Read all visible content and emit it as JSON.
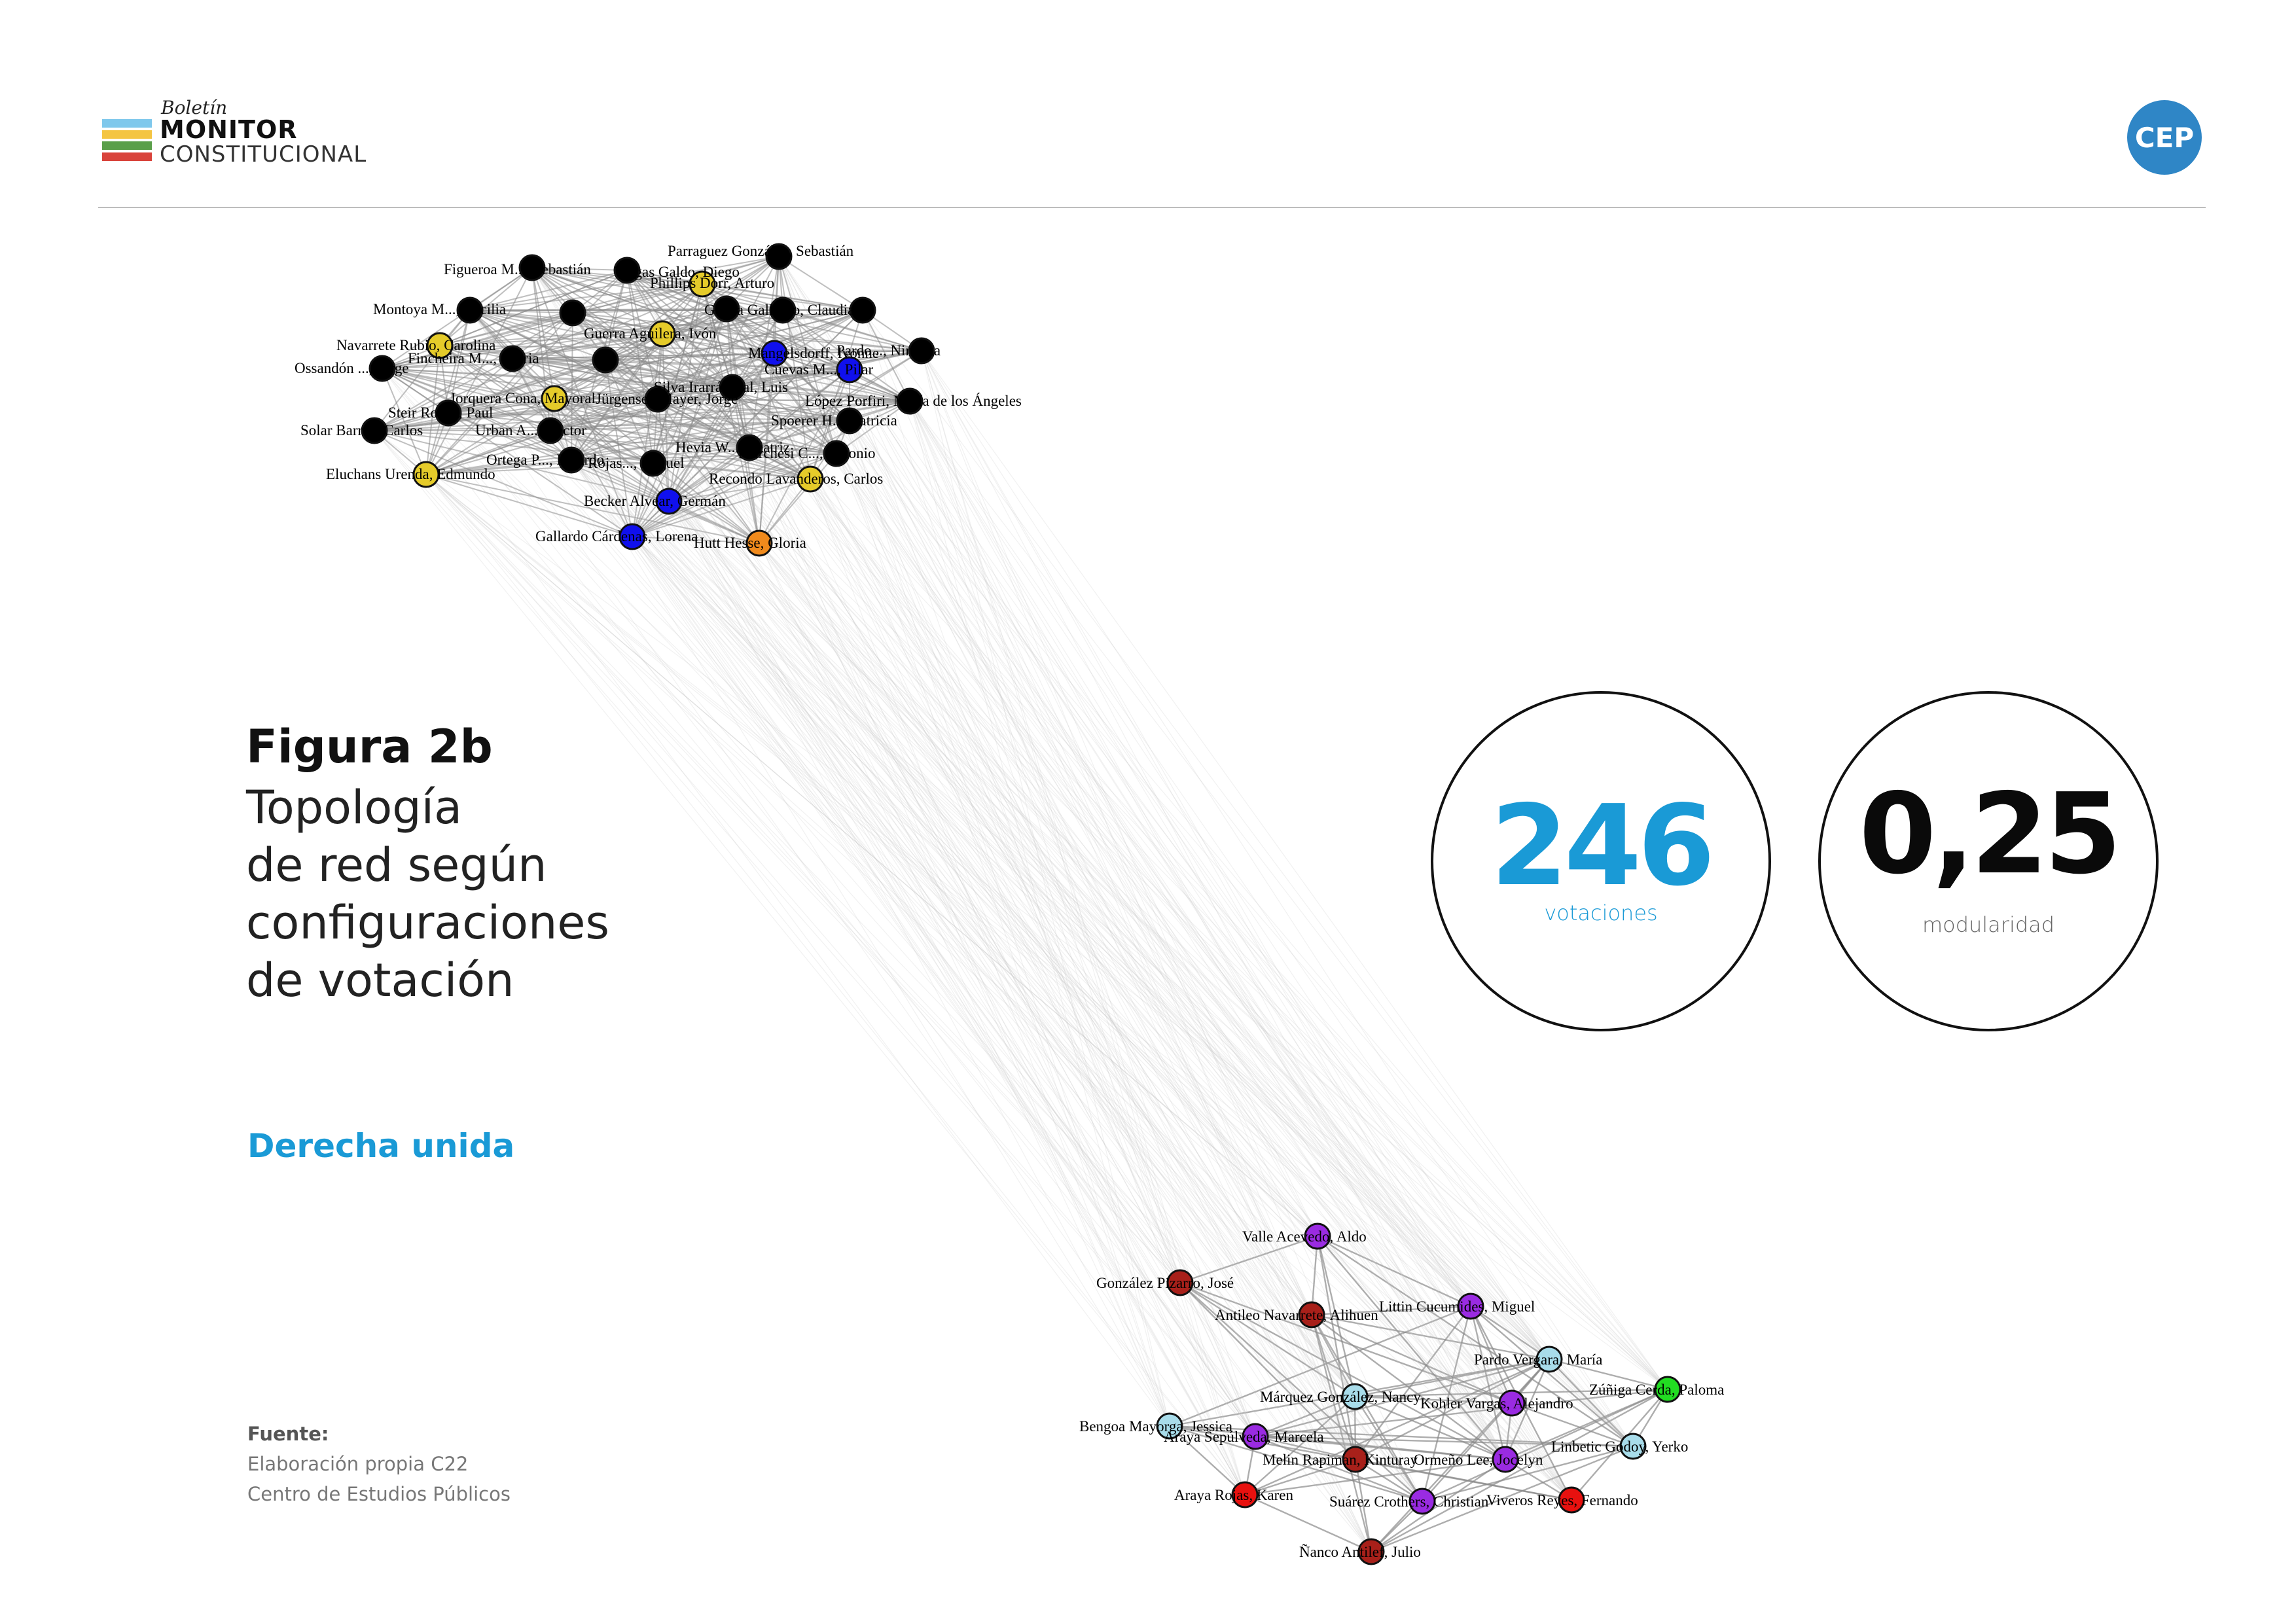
{
  "header": {
    "logo_top": "Boletín",
    "logo_mid": "MONITOR",
    "logo_bot": "CONSTITUCIONAL",
    "cep_badge": "CEP"
  },
  "figure": {
    "title": "Figura 2b",
    "subtitle_lines": [
      "Topología",
      "de red según",
      "configuraciones",
      "de votación"
    ],
    "highlight": "Derecha unida"
  },
  "stats": {
    "votes_value": "246",
    "votes_label": "votaciones",
    "modularity_value": "0,25",
    "modularity_label": "modularidad"
  },
  "source": {
    "label": "Fuente:",
    "line1": "Elaboración propia C22",
    "line2": "Centro de Estudios Públicos"
  },
  "colors": {
    "accent": "#1a9ad6",
    "node_black": "#000000",
    "node_yellow": "#e5cb2a",
    "node_blue": "#1010ee",
    "node_orange": "#f08a1c",
    "node_purple": "#9a2be2",
    "node_darkred": "#a8201a",
    "node_lightblue": "#a8dcea",
    "node_red": "#e8110f",
    "node_green": "#22dd22"
  },
  "network": {
    "cluster_top": [
      {
        "name": "Figueroa M..., Sebastián",
        "color": "black"
      },
      {
        "name": "Vargas Galdo, Diego",
        "color": "black"
      },
      {
        "name": "Parraguez González, Sebastián",
        "color": "black"
      },
      {
        "name": "Phillips Dorr, Arturo",
        "color": "yellow"
      },
      {
        "name": "Montoya M..., Cecilia",
        "color": "black"
      },
      {
        "name": "Gatica Gallardo, Claudia",
        "color": "black"
      },
      {
        "name": "Navarrete Rubio, Carolina",
        "color": "yellow"
      },
      {
        "name": "Ossandón ..., Jorge",
        "color": "black"
      },
      {
        "name": "Fincheira M..., Gloria",
        "color": "black"
      },
      {
        "name": "Guerra Aguilera, Ivón",
        "color": "yellow"
      },
      {
        "name": "Mangelsdorff, Ivonne",
        "color": "blue"
      },
      {
        "name": "Cuevas M..., Pilar",
        "color": "blue"
      },
      {
        "name": "Pardo..., Ninoska",
        "color": "black"
      },
      {
        "name": "Silva Irarrázaval, Luis",
        "color": "black"
      },
      {
        "name": "Jorquera Cona, Mayoral",
        "color": "yellow"
      },
      {
        "name": "Jürgensen Mayer, Jorge",
        "color": "black"
      },
      {
        "name": "López Porfiri, María de los Ángeles",
        "color": "black"
      },
      {
        "name": "Steir Rocco, Paul",
        "color": "black"
      },
      {
        "name": "Spoerer H..., Patricia",
        "color": "black"
      },
      {
        "name": "Solar Barros, Carlos",
        "color": "black"
      },
      {
        "name": "Urban A..., Héctor",
        "color": "black"
      },
      {
        "name": "Hevia W..., Beatriz",
        "color": "black"
      },
      {
        "name": "Marchesi C..., Antonio",
        "color": "black"
      },
      {
        "name": "Ortega P..., Ricardo",
        "color": "black"
      },
      {
        "name": "Rojas..., Miguel",
        "color": "black"
      },
      {
        "name": "Eluchans Urenda, Edmundo",
        "color": "yellow"
      },
      {
        "name": "Recondo Lavanderos, Carlos",
        "color": "yellow"
      },
      {
        "name": "Becker Alvear, Germán",
        "color": "blue"
      },
      {
        "name": "Gallardo Cárdenas, Lorena",
        "color": "blue"
      },
      {
        "name": "Hutt Hesse, Gloria",
        "color": "orange"
      }
    ],
    "cluster_bottom": [
      {
        "name": "Valle Acevedo, Aldo",
        "color": "purple"
      },
      {
        "name": "González Pizarro, José",
        "color": "darkred"
      },
      {
        "name": "Antileo Navarrete, Alihuen",
        "color": "darkred"
      },
      {
        "name": "Littin Cucumides, Miguel",
        "color": "purple"
      },
      {
        "name": "Pardo Vergara, María",
        "color": "lightblue"
      },
      {
        "name": "Zúñiga Cerda, Paloma",
        "color": "green"
      },
      {
        "name": "Márquez González, Nancy",
        "color": "lightblue"
      },
      {
        "name": "Kohler Vargas, Alejandro",
        "color": "purple"
      },
      {
        "name": "Bengoa Mayorga, Jessica",
        "color": "lightblue"
      },
      {
        "name": "Araya Sepúlveda, Marcela",
        "color": "purple"
      },
      {
        "name": "Linbetic Godoy, Yerko",
        "color": "lightblue"
      },
      {
        "name": "Melin Rapiman, Kinturay",
        "color": "darkred"
      },
      {
        "name": "Ormeño Lee, Jocelyn",
        "color": "purple"
      },
      {
        "name": "Araya Rojas, Karen",
        "color": "red"
      },
      {
        "name": "Suárez Crothers, Christian",
        "color": "purple"
      },
      {
        "name": "Viveros Reyes, Fernando",
        "color": "red"
      },
      {
        "name": "Ñanco Antilef, Julio",
        "color": "darkred"
      }
    ]
  }
}
